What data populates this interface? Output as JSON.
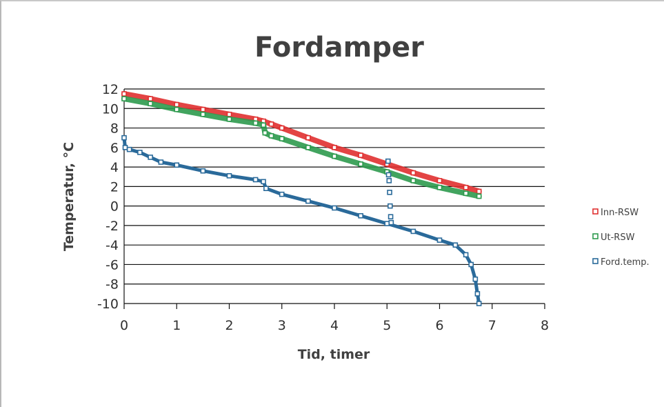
{
  "chart_data": {
    "type": "scatter",
    "title": "Fordamper",
    "xlabel": "Tid, timer",
    "ylabel": "Temperatur, °C",
    "xlim": [
      0,
      8
    ],
    "ylim": [
      -10,
      12
    ],
    "x_ticks": [
      0,
      1,
      2,
      3,
      4,
      5,
      6,
      7,
      8
    ],
    "y_ticks": [
      12,
      10,
      8,
      6,
      4,
      2,
      0,
      -2,
      -4,
      -6,
      -8,
      -10
    ],
    "grid": "horizontal",
    "legend_position": "right",
    "series": [
      {
        "name": "Inn-RSW",
        "color": "#e03030",
        "points": [
          [
            0,
            11.5
          ],
          [
            0.5,
            11.0
          ],
          [
            1.0,
            10.4
          ],
          [
            1.5,
            9.9
          ],
          [
            2.0,
            9.4
          ],
          [
            2.5,
            8.9
          ],
          [
            2.65,
            8.7
          ],
          [
            2.8,
            8.4
          ],
          [
            3.0,
            8.0
          ],
          [
            3.5,
            7.0
          ],
          [
            4.0,
            6.0
          ],
          [
            4.5,
            5.2
          ],
          [
            5.0,
            4.3
          ],
          [
            5.5,
            3.4
          ],
          [
            6.0,
            2.6
          ],
          [
            6.5,
            1.9
          ],
          [
            6.75,
            1.5
          ]
        ]
      },
      {
        "name": "Ut-RSW",
        "color": "#2e9a4e",
        "points": [
          [
            0,
            11.0
          ],
          [
            0.5,
            10.5
          ],
          [
            1.0,
            9.9
          ],
          [
            1.5,
            9.4
          ],
          [
            2.0,
            8.9
          ],
          [
            2.5,
            8.5
          ],
          [
            2.65,
            8.3
          ],
          [
            2.68,
            7.5
          ],
          [
            2.8,
            7.2
          ],
          [
            3.0,
            6.9
          ],
          [
            3.5,
            6.0
          ],
          [
            4.0,
            5.1
          ],
          [
            4.5,
            4.3
          ],
          [
            5.0,
            3.5
          ],
          [
            5.5,
            2.6
          ],
          [
            6.0,
            1.9
          ],
          [
            6.5,
            1.3
          ],
          [
            6.75,
            1.0
          ]
        ]
      },
      {
        "name": "Ford.temp.",
        "color": "#2a6a9a",
        "points": [
          [
            0,
            7.0
          ],
          [
            0.02,
            6.0
          ],
          [
            0.1,
            5.8
          ],
          [
            0.3,
            5.5
          ],
          [
            0.5,
            5.0
          ],
          [
            0.7,
            4.5
          ],
          [
            1.0,
            4.2
          ],
          [
            1.5,
            3.6
          ],
          [
            2.0,
            3.1
          ],
          [
            2.5,
            2.7
          ],
          [
            2.65,
            2.5
          ],
          [
            2.7,
            1.8
          ],
          [
            3.0,
            1.2
          ],
          [
            3.5,
            0.5
          ],
          [
            4.0,
            -0.2
          ],
          [
            4.5,
            -1.0
          ],
          [
            5.0,
            -1.8
          ],
          [
            5.02,
            4.6
          ],
          [
            5.03,
            3.2
          ],
          [
            5.04,
            2.6
          ],
          [
            5.05,
            1.4
          ],
          [
            5.06,
            0.0
          ],
          [
            5.07,
            -1.1
          ],
          [
            5.08,
            -1.7
          ],
          [
            5.5,
            -2.6
          ],
          [
            6.0,
            -3.5
          ],
          [
            6.3,
            -4.0
          ],
          [
            6.5,
            -5.0
          ],
          [
            6.6,
            -6.0
          ],
          [
            6.68,
            -7.5
          ],
          [
            6.72,
            -9.0
          ],
          [
            6.75,
            -10.0
          ]
        ]
      }
    ]
  }
}
